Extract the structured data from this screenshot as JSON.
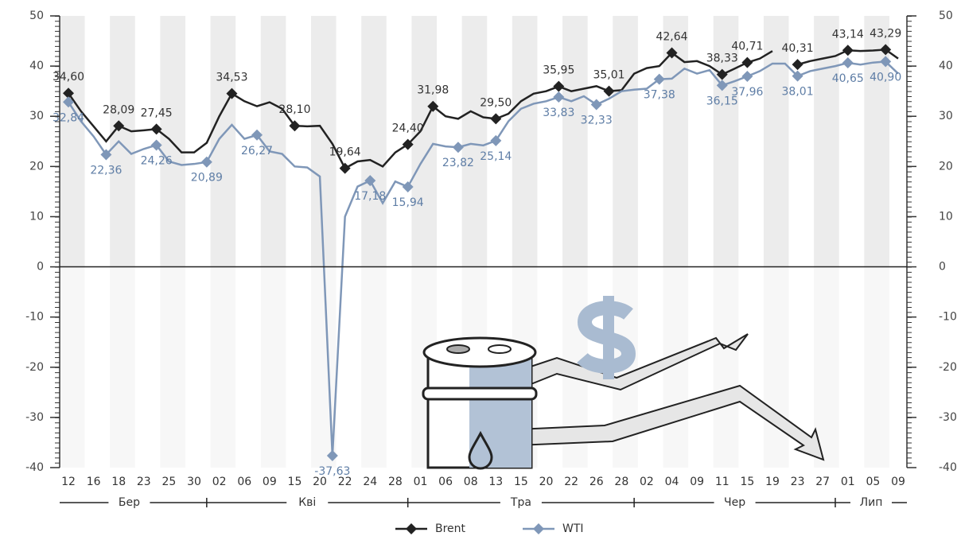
{
  "chart_data": {
    "type": "line",
    "categories": [
      "12",
      null,
      "16",
      null,
      "18",
      null,
      "23",
      null,
      "25",
      null,
      "30",
      null,
      "02",
      null,
      "06",
      null,
      "09",
      null,
      "15",
      null,
      "20",
      null,
      "22",
      null,
      "24",
      null,
      "28",
      null,
      "01",
      null,
      "06",
      null,
      "08",
      null,
      "13",
      null,
      "15",
      null,
      "20",
      null,
      "22",
      null,
      "26",
      null,
      "28",
      null,
      "02",
      null,
      "04",
      null,
      "09",
      null,
      "11",
      null,
      "15",
      null,
      "19",
      null,
      "23",
      null,
      "27",
      null,
      "01",
      null,
      "05",
      null,
      "09"
    ],
    "months": [
      "Бер",
      "Кві",
      "Тра",
      "Чер",
      "Лип"
    ],
    "series": [
      {
        "name": "Brent",
        "color": "#222222",
        "label_color": "#333333",
        "values": [
          34.6,
          31,
          28,
          25,
          28.09,
          27,
          27.2,
          27.45,
          25.5,
          22.8,
          22.8,
          24.7,
          30,
          34.53,
          33,
          32,
          32.8,
          31.5,
          28.1,
          28,
          28.1,
          24.5,
          19.64,
          21,
          21.3,
          20,
          22.8,
          24.4,
          27,
          31.98,
          30,
          29.5,
          31,
          29.8,
          29.5,
          30.5,
          33,
          34.5,
          35,
          35.95,
          35,
          35.5,
          36,
          35.01,
          35.2,
          38.5,
          39.6,
          40,
          42.64,
          40.8,
          41,
          40,
          38.33,
          39.5,
          40.71,
          41.5,
          43,
          null,
          40.31,
          41,
          41.5,
          42,
          43.14,
          43,
          43.1,
          43.29,
          41.5
        ],
        "value_labels": [
          "34,60",
          null,
          null,
          null,
          "28,09",
          null,
          null,
          "27,45",
          null,
          null,
          null,
          null,
          null,
          "34,53",
          null,
          null,
          null,
          null,
          "28,10",
          null,
          null,
          null,
          "19,64",
          null,
          null,
          null,
          null,
          "24,40",
          null,
          "31,98",
          null,
          null,
          null,
          null,
          "29,50",
          null,
          null,
          null,
          null,
          "35,95",
          null,
          null,
          null,
          "35,01",
          null,
          null,
          null,
          null,
          "42,64",
          null,
          null,
          null,
          "38,33",
          null,
          "40,71",
          null,
          null,
          null,
          "40,31",
          null,
          null,
          null,
          "43,14",
          null,
          null,
          "43,29",
          null
        ]
      },
      {
        "name": "WTI",
        "color": "#7f97b8",
        "label_color": "#5f7ea6",
        "values": [
          32.84,
          29,
          26,
          22.36,
          25,
          22.5,
          23.5,
          24.26,
          21,
          20.3,
          20.5,
          20.89,
          25.5,
          28.3,
          25.5,
          26.27,
          23,
          22.5,
          20,
          19.8,
          18,
          -37.63,
          10,
          16,
          17.18,
          12.7,
          17,
          15.94,
          20.5,
          24.5,
          24,
          23.82,
          24.5,
          24.2,
          25.14,
          29,
          31.5,
          32.5,
          33,
          33.83,
          33,
          34,
          32.33,
          33.5,
          35,
          35.3,
          35.5,
          37.38,
          37.5,
          39.5,
          38.5,
          39.2,
          36.15,
          37,
          37.96,
          39,
          40.5,
          40.5,
          38.01,
          39,
          39.5,
          40,
          40.65,
          40.3,
          40.7,
          40.9,
          38.5
        ],
        "value_labels": [
          "32,84",
          null,
          null,
          "22,36",
          null,
          null,
          null,
          "24,26",
          null,
          null,
          null,
          "20,89",
          null,
          null,
          null,
          "26,27",
          null,
          null,
          null,
          null,
          null,
          "-37,63",
          null,
          null,
          "17,18",
          null,
          null,
          "15,94",
          null,
          null,
          null,
          "23,82",
          null,
          null,
          "25,14",
          null,
          null,
          null,
          null,
          "33,83",
          null,
          null,
          "32,33",
          null,
          null,
          null,
          null,
          "37,38",
          null,
          null,
          null,
          null,
          "36,15",
          null,
          "37,96",
          null,
          null,
          null,
          "38,01",
          null,
          null,
          null,
          "40,65",
          null,
          null,
          "40,90",
          null
        ]
      }
    ],
    "ylim": [
      -40,
      50
    ],
    "yticks": [
      -40,
      -30,
      -20,
      -10,
      0,
      10,
      20,
      30,
      40,
      50
    ],
    "y2lim": [
      -40,
      50
    ],
    "y2ticks": [
      -40,
      -30,
      -20,
      -10,
      0,
      10,
      20,
      30,
      40,
      50
    ],
    "grid": false
  }
}
